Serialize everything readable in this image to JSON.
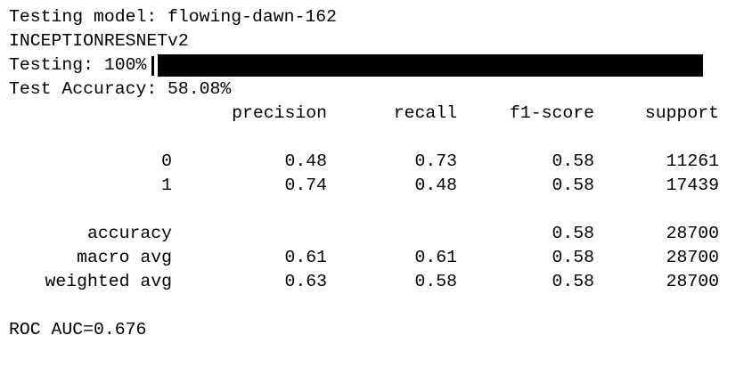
{
  "header": {
    "model_line": "Testing model: flowing-dawn-162",
    "arch_line": "INCEPTIONRESNETv2",
    "progress_label": "Testing: 100%",
    "progress": 1.0,
    "accuracy_line": "Test Accuracy: 58.08%"
  },
  "report": {
    "columns": [
      "precision",
      "recall",
      "f1-score",
      "support"
    ],
    "class_rows": [
      {
        "label": "0",
        "precision": "0.48",
        "recall": "0.73",
        "f1": "0.58",
        "support": "11261"
      },
      {
        "label": "1",
        "precision": "0.74",
        "recall": "0.48",
        "f1": "0.58",
        "support": "17439"
      }
    ],
    "summary_rows": [
      {
        "label": "accuracy",
        "precision": "",
        "recall": "",
        "f1": "0.58",
        "support": "28700"
      },
      {
        "label": "macro avg",
        "precision": "0.61",
        "recall": "0.61",
        "f1": "0.58",
        "support": "28700"
      },
      {
        "label": "weighted avg",
        "precision": "0.63",
        "recall": "0.58",
        "f1": "0.58",
        "support": "28700"
      }
    ]
  },
  "footer": {
    "roc_line": "ROC AUC=0.676"
  }
}
